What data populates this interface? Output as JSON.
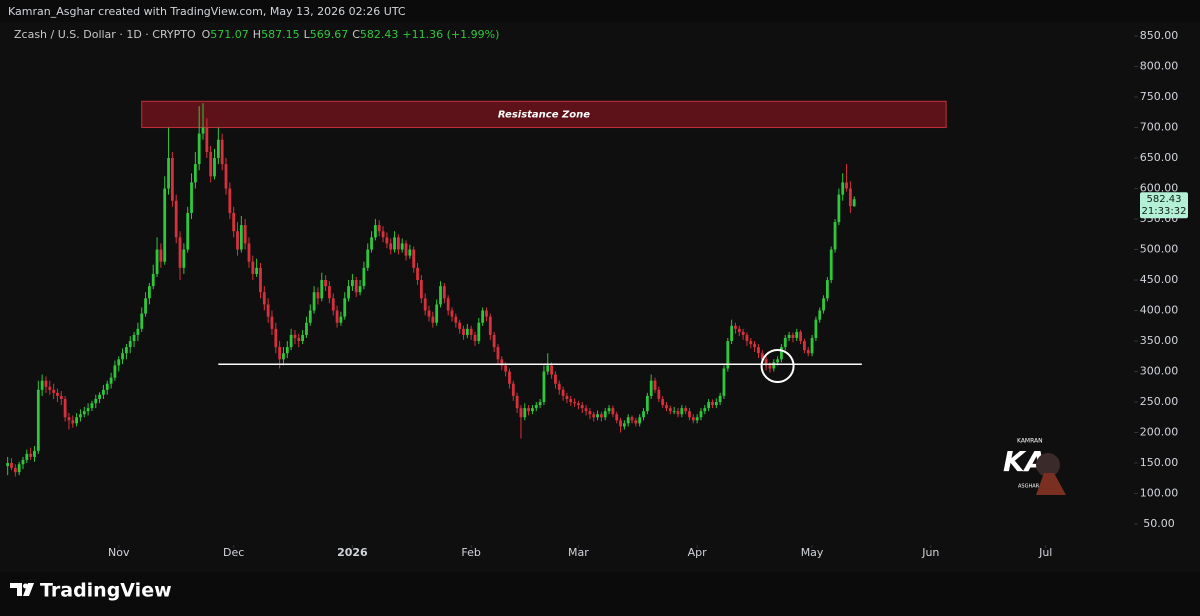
{
  "header": "Kamran_Asghar created with TradingView.com, May 13, 2026 02:26 UTC",
  "footer_logo": "TradingView",
  "watermark": {
    "top": "KAMRAN",
    "main": "KA",
    "bottom": "ASGHAR"
  },
  "chart_data": {
    "type": "candlestick",
    "symbol": "Zcash / U.S. Dollar · 1D · CRYPTO",
    "ohlc_labels": [
      "O",
      "H",
      "L",
      "C"
    ],
    "change": "+11.36 (+1.99%)",
    "countdown": "21:33:32",
    "up_color": "#2fc73c",
    "down_color": "#d8303c",
    "xlim": [
      -2,
      293
    ],
    "xticks": [
      {
        "value": 29,
        "label": "Nov"
      },
      {
        "value": 59,
        "label": "Dec"
      },
      {
        "value": 90,
        "label": "2026"
      },
      {
        "value": 121,
        "label": "Feb"
      },
      {
        "value": 149,
        "label": "Mar"
      },
      {
        "value": 180,
        "label": "Apr"
      },
      {
        "value": 210,
        "label": "May"
      },
      {
        "value": 241,
        "label": "Jun"
      },
      {
        "value": 271,
        "label": "Jul"
      }
    ],
    "ylim": [
      15.6,
      873
    ],
    "yticks": [
      {
        "value": 50,
        "label": "50.00"
      },
      {
        "value": 100,
        "label": "100.00"
      },
      {
        "value": 150,
        "label": "150.00"
      },
      {
        "value": 200,
        "label": "200.00"
      },
      {
        "value": 250,
        "label": "250.00"
      },
      {
        "value": 300,
        "label": "300.00"
      },
      {
        "value": 350,
        "label": "350.00"
      },
      {
        "value": 400,
        "label": "400.00"
      },
      {
        "value": 450,
        "label": "450.00"
      },
      {
        "value": 500,
        "label": "500.00"
      },
      {
        "value": 550,
        "label": "550.00"
      },
      {
        "value": 600,
        "label": "600.00"
      },
      {
        "value": 650,
        "label": "650.00"
      },
      {
        "value": 700,
        "label": "700.00"
      },
      {
        "value": 750,
        "label": "750.00"
      },
      {
        "value": 800,
        "label": "800.00"
      },
      {
        "value": 850,
        "label": "850.00"
      }
    ],
    "resistance_zone": {
      "label": "Resistance Zone",
      "x": [
        35,
        245
      ],
      "y": [
        700,
        743
      ]
    },
    "support_line": {
      "x": [
        55,
        223
      ],
      "y": 312
    },
    "highlight_circle": {
      "x": 201,
      "y": 309
    },
    "candles": [
      [
        145,
        160,
        130,
        150
      ],
      [
        150,
        158,
        138,
        142
      ],
      [
        142,
        148,
        128,
        135
      ],
      [
        135,
        152,
        130,
        148
      ],
      [
        148,
        160,
        140,
        155
      ],
      [
        155,
        172,
        150,
        165
      ],
      [
        165,
        175,
        155,
        160
      ],
      [
        160,
        178,
        152,
        170
      ],
      [
        170,
        285,
        165,
        270
      ],
      [
        270,
        295,
        260,
        285
      ],
      [
        285,
        292,
        265,
        275
      ],
      [
        275,
        285,
        262,
        270
      ],
      [
        270,
        280,
        255,
        265
      ],
      [
        265,
        272,
        250,
        260
      ],
      [
        260,
        268,
        245,
        255
      ],
      [
        255,
        260,
        218,
        225
      ],
      [
        225,
        232,
        205,
        220
      ],
      [
        220,
        228,
        208,
        215
      ],
      [
        215,
        232,
        210,
        225
      ],
      [
        225,
        238,
        218,
        230
      ],
      [
        230,
        242,
        225,
        235
      ],
      [
        235,
        248,
        228,
        240
      ],
      [
        240,
        252,
        235,
        248
      ],
      [
        248,
        262,
        240,
        255
      ],
      [
        255,
        266,
        248,
        262
      ],
      [
        262,
        278,
        255,
        270
      ],
      [
        270,
        285,
        262,
        280
      ],
      [
        280,
        298,
        272,
        290
      ],
      [
        290,
        318,
        285,
        310
      ],
      [
        310,
        325,
        300,
        320
      ],
      [
        320,
        338,
        312,
        330
      ],
      [
        330,
        345,
        320,
        340
      ],
      [
        340,
        358,
        330,
        350
      ],
      [
        350,
        365,
        340,
        360
      ],
      [
        360,
        380,
        350,
        370
      ],
      [
        370,
        405,
        365,
        395
      ],
      [
        395,
        430,
        390,
        420
      ],
      [
        420,
        445,
        410,
        440
      ],
      [
        440,
        475,
        435,
        460
      ],
      [
        460,
        520,
        455,
        500
      ],
      [
        500,
        510,
        470,
        480
      ],
      [
        480,
        620,
        475,
        600
      ],
      [
        600,
        700,
        590,
        650
      ],
      [
        650,
        660,
        570,
        580
      ],
      [
        580,
        590,
        510,
        520
      ],
      [
        520,
        530,
        450,
        470
      ],
      [
        470,
        510,
        460,
        500
      ],
      [
        500,
        570,
        495,
        560
      ],
      [
        560,
        625,
        550,
        610
      ],
      [
        610,
        660,
        600,
        640
      ],
      [
        640,
        735,
        630,
        690
      ],
      [
        690,
        740,
        680,
        700
      ],
      [
        700,
        715,
        650,
        660
      ],
      [
        660,
        670,
        610,
        620
      ],
      [
        620,
        665,
        615,
        650
      ],
      [
        650,
        700,
        640,
        680
      ],
      [
        680,
        690,
        630,
        640
      ],
      [
        640,
        650,
        590,
        600
      ],
      [
        600,
        610,
        550,
        560
      ],
      [
        560,
        570,
        520,
        530
      ],
      [
        530,
        545,
        490,
        500
      ],
      [
        500,
        555,
        495,
        540
      ],
      [
        540,
        550,
        500,
        510
      ],
      [
        510,
        520,
        470,
        480
      ],
      [
        480,
        490,
        450,
        460
      ],
      [
        460,
        485,
        455,
        470
      ],
      [
        470,
        478,
        420,
        430
      ],
      [
        430,
        440,
        400,
        410
      ],
      [
        410,
        420,
        380,
        390
      ],
      [
        390,
        400,
        360,
        370
      ],
      [
        370,
        380,
        330,
        340
      ],
      [
        340,
        350,
        305,
        320
      ],
      [
        320,
        340,
        310,
        330
      ],
      [
        330,
        350,
        322,
        340
      ],
      [
        340,
        370,
        335,
        360
      ],
      [
        360,
        368,
        345,
        355
      ],
      [
        355,
        362,
        340,
        350
      ],
      [
        350,
        368,
        345,
        360
      ],
      [
        360,
        390,
        355,
        380
      ],
      [
        380,
        410,
        375,
        400
      ],
      [
        400,
        440,
        395,
        430
      ],
      [
        430,
        438,
        410,
        420
      ],
      [
        420,
        462,
        415,
        450
      ],
      [
        450,
        458,
        432,
        440
      ],
      [
        440,
        448,
        412,
        420
      ],
      [
        420,
        428,
        392,
        400
      ],
      [
        400,
        408,
        372,
        380
      ],
      [
        380,
        398,
        375,
        390
      ],
      [
        390,
        430,
        385,
        420
      ],
      [
        420,
        450,
        415,
        440
      ],
      [
        440,
        460,
        432,
        450
      ],
      [
        450,
        455,
        422,
        430
      ],
      [
        430,
        450,
        425,
        440
      ],
      [
        440,
        480,
        435,
        470
      ],
      [
        470,
        510,
        465,
        500
      ],
      [
        500,
        530,
        495,
        520
      ],
      [
        520,
        550,
        515,
        540
      ],
      [
        540,
        548,
        522,
        530
      ],
      [
        530,
        538,
        512,
        520
      ],
      [
        520,
        528,
        502,
        510
      ],
      [
        510,
        518,
        492,
        500
      ],
      [
        500,
        530,
        495,
        520
      ],
      [
        520,
        525,
        492,
        500
      ],
      [
        500,
        518,
        495,
        510
      ],
      [
        510,
        515,
        482,
        490
      ],
      [
        490,
        508,
        485,
        500
      ],
      [
        500,
        505,
        462,
        470
      ],
      [
        470,
        478,
        442,
        450
      ],
      [
        450,
        458,
        412,
        420
      ],
      [
        420,
        428,
        392,
        400
      ],
      [
        400,
        408,
        382,
        390
      ],
      [
        390,
        398,
        372,
        380
      ],
      [
        380,
        418,
        375,
        410
      ],
      [
        410,
        448,
        405,
        440
      ],
      [
        440,
        445,
        412,
        420
      ],
      [
        420,
        425,
        392,
        400
      ],
      [
        400,
        405,
        382,
        390
      ],
      [
        390,
        395,
        372,
        380
      ],
      [
        380,
        385,
        362,
        370
      ],
      [
        370,
        375,
        352,
        360
      ],
      [
        360,
        378,
        355,
        370
      ],
      [
        370,
        375,
        352,
        360
      ],
      [
        360,
        365,
        342,
        350
      ],
      [
        350,
        388,
        345,
        380
      ],
      [
        380,
        405,
        375,
        400
      ],
      [
        400,
        405,
        382,
        390
      ],
      [
        390,
        395,
        352,
        360
      ],
      [
        360,
        365,
        332,
        340
      ],
      [
        340,
        345,
        312,
        320
      ],
      [
        320,
        325,
        302,
        310
      ],
      [
        310,
        315,
        292,
        300
      ],
      [
        300,
        305,
        272,
        280
      ],
      [
        280,
        285,
        252,
        260
      ],
      [
        260,
        265,
        232,
        240
      ],
      [
        240,
        245,
        190,
        225
      ],
      [
        225,
        248,
        220,
        240
      ],
      [
        240,
        245,
        228,
        235
      ],
      [
        235,
        245,
        230,
        240
      ],
      [
        240,
        250,
        235,
        245
      ],
      [
        245,
        255,
        240,
        250
      ],
      [
        250,
        310,
        245,
        300
      ],
      [
        300,
        330,
        295,
        310
      ],
      [
        310,
        315,
        288,
        295
      ],
      [
        295,
        300,
        272,
        280
      ],
      [
        280,
        285,
        262,
        270
      ],
      [
        270,
        275,
        252,
        260
      ],
      [
        260,
        265,
        248,
        255
      ],
      [
        255,
        260,
        244,
        250
      ],
      [
        250,
        256,
        242,
        248
      ],
      [
        248,
        252,
        238,
        245
      ],
      [
        245,
        250,
        232,
        240
      ],
      [
        240,
        245,
        228,
        235
      ],
      [
        235,
        240,
        222,
        230
      ],
      [
        230,
        234,
        218,
        225
      ],
      [
        225,
        236,
        220,
        230
      ],
      [
        230,
        234,
        218,
        225
      ],
      [
        225,
        240,
        220,
        235
      ],
      [
        235,
        245,
        230,
        240
      ],
      [
        240,
        244,
        225,
        230
      ],
      [
        230,
        234,
        215,
        220
      ],
      [
        220,
        224,
        200,
        210
      ],
      [
        210,
        220,
        205,
        215
      ],
      [
        215,
        230,
        210,
        225
      ],
      [
        225,
        228,
        215,
        220
      ],
      [
        220,
        224,
        210,
        215
      ],
      [
        215,
        230,
        210,
        225
      ],
      [
        225,
        240,
        220,
        235
      ],
      [
        235,
        265,
        230,
        260
      ],
      [
        260,
        295,
        255,
        285
      ],
      [
        285,
        290,
        265,
        270
      ],
      [
        270,
        275,
        250,
        255
      ],
      [
        255,
        260,
        240,
        245
      ],
      [
        245,
        250,
        235,
        240
      ],
      [
        240,
        244,
        230,
        235
      ],
      [
        235,
        242,
        230,
        235
      ],
      [
        235,
        240,
        225,
        230
      ],
      [
        230,
        245,
        225,
        240
      ],
      [
        240,
        244,
        230,
        235
      ],
      [
        235,
        240,
        220,
        225
      ],
      [
        225,
        230,
        215,
        220
      ],
      [
        220,
        230,
        215,
        225
      ],
      [
        225,
        240,
        220,
        235
      ],
      [
        235,
        245,
        230,
        240
      ],
      [
        240,
        255,
        235,
        250
      ],
      [
        250,
        254,
        240,
        245
      ],
      [
        245,
        256,
        240,
        250
      ],
      [
        250,
        265,
        245,
        260
      ],
      [
        260,
        310,
        255,
        305
      ],
      [
        305,
        355,
        300,
        350
      ],
      [
        350,
        385,
        345,
        375
      ],
      [
        375,
        380,
        362,
        370
      ],
      [
        370,
        375,
        358,
        365
      ],
      [
        365,
        370,
        352,
        360
      ],
      [
        360,
        364,
        342,
        350
      ],
      [
        350,
        355,
        338,
        345
      ],
      [
        345,
        350,
        332,
        340
      ],
      [
        340,
        345,
        322,
        330
      ],
      [
        330,
        335,
        312,
        320
      ],
      [
        320,
        325,
        302,
        310
      ],
      [
        310,
        315,
        298,
        305
      ],
      [
        305,
        320,
        300,
        315
      ],
      [
        315,
        325,
        310,
        320
      ],
      [
        320,
        345,
        315,
        340
      ],
      [
        340,
        360,
        335,
        355
      ],
      [
        355,
        365,
        350,
        360
      ],
      [
        360,
        364,
        348,
        355
      ],
      [
        355,
        370,
        350,
        365
      ],
      [
        365,
        368,
        345,
        350
      ],
      [
        350,
        354,
        330,
        335
      ],
      [
        335,
        340,
        325,
        330
      ],
      [
        330,
        360,
        325,
        355
      ],
      [
        355,
        390,
        350,
        385
      ],
      [
        385,
        405,
        380,
        400
      ],
      [
        400,
        425,
        395,
        420
      ],
      [
        420,
        455,
        415,
        450
      ],
      [
        450,
        505,
        445,
        500
      ],
      [
        500,
        550,
        495,
        545
      ],
      [
        545,
        600,
        540,
        590
      ],
      [
        590,
        625,
        580,
        610
      ],
      [
        610,
        640,
        595,
        600
      ],
      [
        600,
        612,
        560,
        571.07
      ],
      [
        571.07,
        587.15,
        569.67,
        582.43
      ]
    ]
  }
}
